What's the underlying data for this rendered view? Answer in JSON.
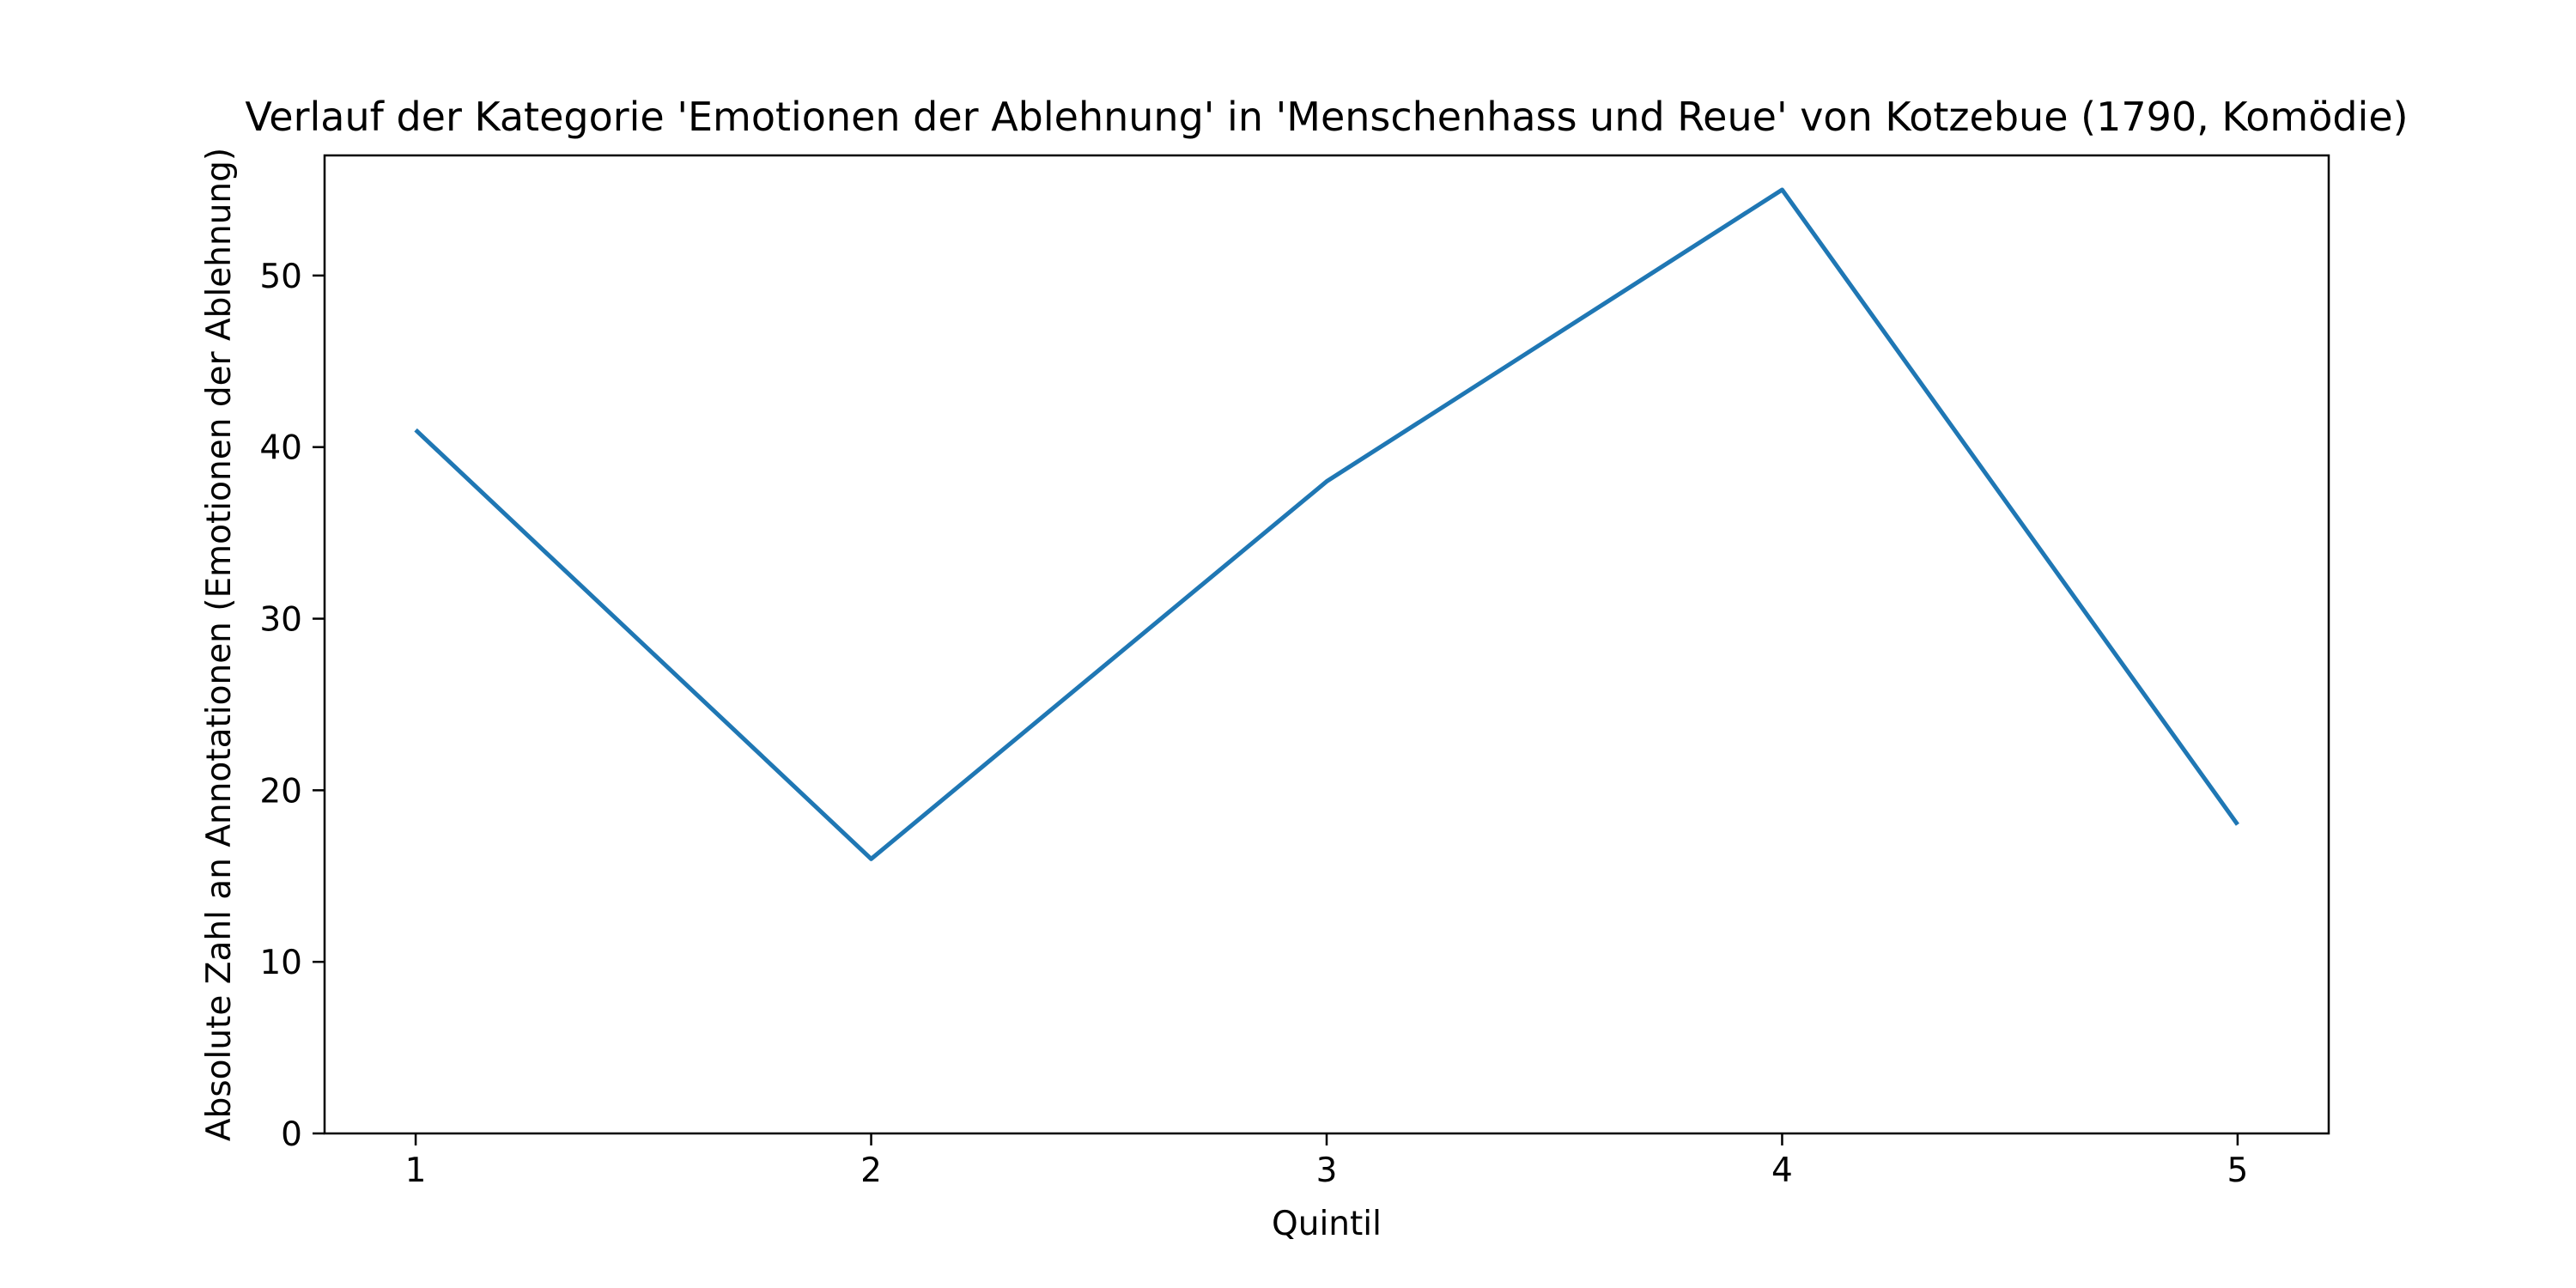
{
  "chart_data": {
    "type": "line",
    "title": "Verlauf der Kategorie 'Emotionen der Ablehnung' in 'Menschenhass und Reue' von Kotzebue (1790, Komödie)",
    "xlabel": "Quintil",
    "ylabel": "Absolute Zahl an Annotationen (Emotionen der Ablehnung)",
    "x": [
      1,
      2,
      3,
      4,
      5
    ],
    "series": [
      {
        "values": [
          41,
          16,
          38,
          55,
          18
        ],
        "color": "#1f77b4"
      }
    ],
    "xlim": [
      0.8,
      5.2
    ],
    "ylim": [
      0,
      57
    ],
    "xticks": [
      1,
      2,
      3,
      4,
      5
    ],
    "yticks": [
      0,
      10,
      20,
      30,
      40,
      50
    ],
    "grid": false,
    "legend": "none"
  }
}
